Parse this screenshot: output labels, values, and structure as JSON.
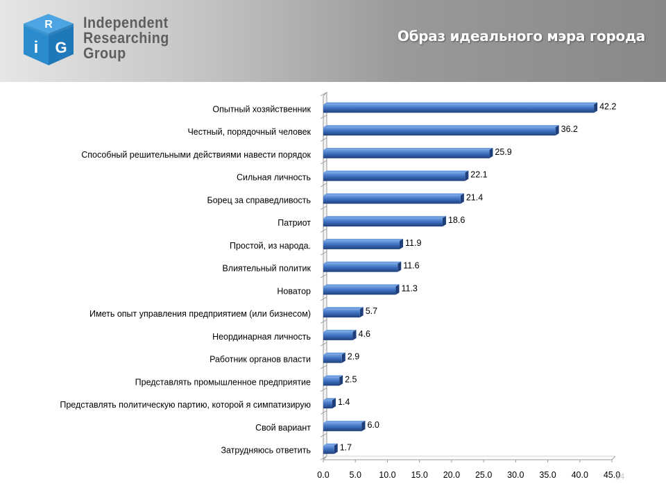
{
  "header": {
    "logo_text_lines": [
      "Independent",
      "Researching",
      "Group"
    ],
    "logo_letters": [
      "R",
      "i",
      "G"
    ],
    "title": "Образ идеального мэра города"
  },
  "page_number": "14",
  "colors": {
    "bar": "#3d6fc0",
    "bar_dark": "#1f3f7a",
    "bar_light": "#6f9ee0",
    "cube_blue": "#2b8ccd",
    "cube_dark": "#1f6fa8"
  },
  "chart_data": {
    "type": "bar",
    "orientation": "horizontal",
    "title": "",
    "xlabel": "",
    "ylabel": "",
    "xlim": [
      0,
      45
    ],
    "x_ticks": [
      "0.0",
      "5.0",
      "10.0",
      "15.0",
      "20.0",
      "25.0",
      "30.0",
      "35.0",
      "40.0",
      "45.0"
    ],
    "grid": false,
    "legend": "none",
    "categories": [
      "Опытный хозяйственник",
      "Честный, порядочный человек",
      "Способный решительными действиями навести порядок",
      "Сильная личность",
      "Борец за справедливость",
      "Патриот",
      "Простой, из народа.",
      "Влиятельный политик",
      "Новатор",
      "Иметь опыт  управления предприятием (или бизнесом)",
      "Неординарная личность",
      "Работник органов власти",
      "Представлять промышленное предприятие",
      "Представлять политическую партию, которой  я симпатизирую",
      "Свой вариант",
      "Затрудняюсь ответить"
    ],
    "values": [
      42.2,
      36.2,
      25.9,
      22.1,
      21.4,
      18.6,
      11.9,
      11.6,
      11.3,
      5.7,
      4.6,
      2.9,
      2.5,
      1.4,
      6.0,
      1.7
    ],
    "value_labels": [
      "42.2",
      "36.2",
      "25.9",
      "22.1",
      "21.4",
      "18.6",
      "11.9",
      "11.6",
      "11.3",
      "5.7",
      "4.6",
      "2.9",
      "2.5",
      "1.4",
      "6.0",
      "1.7"
    ]
  }
}
